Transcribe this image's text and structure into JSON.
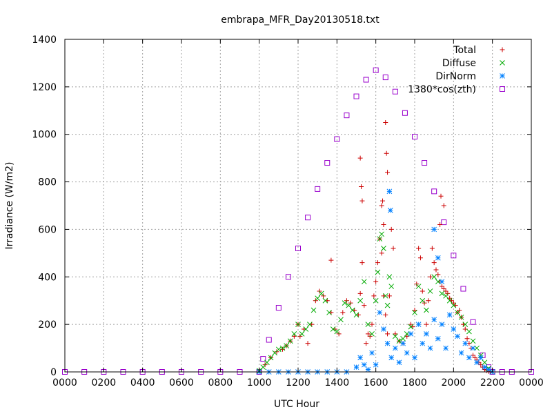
{
  "chart_data": {
    "type": "scatter",
    "title": "embrapa_MFR_Day20130518.txt",
    "xlabel": "UTC Hour",
    "ylabel": "Irradiance (W/m2)",
    "xlim": [
      0,
      24
    ],
    "ylim": [
      0,
      1400
    ],
    "x_ticks": [
      0,
      2,
      4,
      6,
      8,
      10,
      12,
      14,
      16,
      18,
      20,
      22,
      24
    ],
    "x_tick_labels": [
      "0000",
      "0200",
      "0400",
      "0600",
      "0800",
      "1000",
      "1200",
      "1400",
      "1600",
      "1800",
      "2000",
      "2200",
      "0000"
    ],
    "y_ticks": [
      0,
      200,
      400,
      600,
      800,
      1000,
      1200,
      1400
    ],
    "y_tick_labels": [
      "0",
      "200",
      "400",
      "600",
      "800",
      "1000",
      "1200",
      "1400"
    ],
    "grid": true,
    "legend_position": "top-right",
    "series": [
      {
        "name": "Total",
        "marker": "plus",
        "color": "#cc0000",
        "x": [
          10.0,
          10.3,
          10.6,
          10.9,
          11.2,
          11.4,
          11.6,
          11.8,
          12.0,
          12.1,
          12.3,
          12.5,
          12.7,
          12.9,
          13.1,
          13.3,
          13.5,
          13.7,
          13.9,
          14.1,
          14.3,
          14.5,
          14.7,
          14.9,
          15.1,
          15.2,
          15.3,
          15.4,
          15.5,
          15.6,
          15.7,
          15.8,
          15.9,
          16.0,
          16.1,
          16.2,
          16.3,
          16.4,
          16.5,
          16.6,
          16.7,
          16.8,
          16.9,
          17.0,
          17.2,
          17.4,
          17.6,
          17.8,
          17.9,
          18.0,
          18.1,
          18.2,
          18.3,
          18.4,
          18.5,
          18.6,
          18.7,
          18.8,
          18.9,
          19.0,
          19.1,
          19.2,
          19.3,
          19.4,
          19.5,
          19.6,
          19.7,
          19.8,
          19.9,
          20.0,
          20.1,
          20.2,
          20.3,
          20.4,
          20.5,
          20.6,
          20.7,
          20.8,
          20.9,
          21.0,
          21.1,
          21.2,
          21.3,
          21.4,
          21.5,
          21.6,
          21.7,
          21.8,
          21.9,
          22.0,
          15.2,
          15.25,
          15.3,
          16.3,
          16.35,
          16.4,
          16.5,
          16.55,
          16.6,
          19.3,
          19.35,
          19.5,
          13.7
        ],
        "y": [
          5,
          30,
          60,
          85,
          95,
          110,
          130,
          150,
          200,
          150,
          180,
          120,
          200,
          300,
          340,
          320,
          300,
          250,
          180,
          160,
          250,
          300,
          290,
          260,
          240,
          330,
          460,
          280,
          120,
          160,
          150,
          200,
          320,
          380,
          460,
          560,
          500,
          320,
          240,
          160,
          320,
          600,
          520,
          160,
          130,
          120,
          150,
          200,
          190,
          260,
          370,
          520,
          480,
          340,
          290,
          200,
          300,
          400,
          520,
          460,
          430,
          410,
          380,
          360,
          350,
          340,
          330,
          310,
          300,
          290,
          280,
          250,
          260,
          230,
          200,
          180,
          140,
          120,
          100,
          70,
          60,
          50,
          40,
          30,
          20,
          10,
          5,
          2,
          1,
          0,
          900,
          780,
          720,
          700,
          720,
          620,
          1050,
          920,
          840,
          620,
          740,
          700,
          470
        ]
      },
      {
        "name": "Diffuse",
        "marker": "cross",
        "color": "#00aa00",
        "x": [
          10.0,
          10.2,
          10.4,
          10.6,
          10.8,
          11.0,
          11.2,
          11.4,
          11.6,
          11.8,
          12.0,
          12.2,
          12.4,
          12.6,
          12.8,
          13.0,
          13.2,
          13.4,
          13.6,
          13.8,
          14.0,
          14.2,
          14.4,
          14.6,
          14.8,
          15.0,
          15.2,
          15.4,
          15.6,
          15.8,
          16.0,
          16.1,
          16.2,
          16.3,
          16.4,
          16.5,
          16.6,
          16.7,
          16.8,
          17.0,
          17.2,
          17.4,
          17.6,
          17.8,
          18.0,
          18.2,
          18.4,
          18.6,
          18.8,
          19.0,
          19.2,
          19.4,
          19.6,
          19.8,
          20.0,
          20.2,
          20.4,
          20.6,
          20.8,
          21.0,
          21.2,
          21.4,
          21.6,
          21.8,
          22.0
        ],
        "y": [
          5,
          20,
          40,
          60,
          80,
          95,
          100,
          110,
          130,
          160,
          200,
          160,
          180,
          200,
          260,
          310,
          330,
          300,
          250,
          180,
          170,
          220,
          290,
          280,
          260,
          240,
          300,
          380,
          200,
          160,
          300,
          420,
          560,
          580,
          520,
          320,
          280,
          400,
          360,
          150,
          130,
          140,
          160,
          190,
          250,
          360,
          300,
          260,
          340,
          400,
          380,
          330,
          320,
          300,
          280,
          250,
          230,
          200,
          170,
          130,
          100,
          70,
          40,
          15,
          0
        ]
      },
      {
        "name": "DirNorm",
        "marker": "star",
        "color": "#0080ff",
        "x": [
          10.0,
          10.5,
          11.0,
          11.5,
          12.0,
          12.5,
          13.0,
          13.5,
          14.0,
          14.5,
          15.0,
          15.2,
          15.4,
          15.6,
          15.8,
          16.0,
          16.2,
          16.4,
          16.6,
          16.8,
          17.0,
          17.2,
          17.4,
          17.6,
          17.8,
          18.0,
          18.2,
          18.4,
          18.6,
          18.8,
          19.0,
          19.2,
          19.4,
          19.6,
          19.8,
          20.0,
          20.2,
          20.4,
          20.6,
          20.8,
          21.0,
          21.2,
          21.4,
          21.6,
          21.8,
          22.0,
          16.7,
          16.75,
          19.0,
          19.2,
          19.4
        ],
        "y": [
          0,
          0,
          0,
          0,
          0,
          0,
          0,
          0,
          0,
          0,
          20,
          60,
          30,
          10,
          80,
          30,
          250,
          180,
          120,
          60,
          100,
          40,
          120,
          80,
          160,
          60,
          200,
          120,
          160,
          100,
          220,
          140,
          200,
          100,
          240,
          180,
          150,
          80,
          120,
          60,
          100,
          40,
          60,
          20,
          10,
          0,
          760,
          680,
          600,
          480,
          380
        ]
      },
      {
        "name": "1380*cos(zth)",
        "marker": "square",
        "color": "#9900cc",
        "x": [
          0,
          1,
          2,
          3,
          4,
          5,
          6,
          7,
          8,
          9,
          10,
          10.2,
          10.5,
          11.0,
          11.5,
          12.0,
          12.5,
          13.0,
          13.5,
          14.0,
          14.5,
          15.0,
          15.5,
          16.0,
          16.5,
          17.0,
          17.5,
          18.0,
          18.5,
          19.0,
          19.5,
          20.0,
          20.5,
          21.0,
          21.5,
          21.8,
          22.0,
          22.5,
          23.0,
          24.0
        ],
        "y": [
          0,
          0,
          0,
          0,
          0,
          0,
          0,
          0,
          0,
          0,
          0,
          55,
          135,
          270,
          400,
          520,
          650,
          770,
          880,
          980,
          1080,
          1160,
          1230,
          1270,
          1240,
          1180,
          1090,
          990,
          880,
          760,
          630,
          490,
          350,
          210,
          70,
          20,
          0,
          0,
          0,
          0
        ]
      }
    ]
  }
}
